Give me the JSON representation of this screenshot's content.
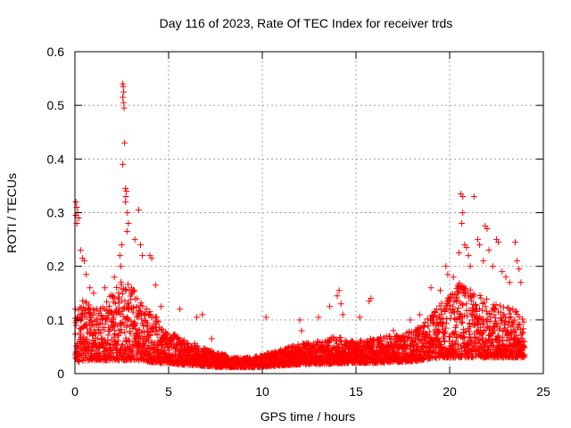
{
  "chart_data": {
    "type": "scatter",
    "title": "Day 116 of 2023, Rate Of TEC Index for receiver trds",
    "xlabel": "GPS time / hours",
    "ylabel": "ROTI / TECUs",
    "xlim": [
      0,
      25
    ],
    "ylim": [
      0,
      0.6
    ],
    "xticks": [
      0,
      5,
      10,
      15,
      20,
      25
    ],
    "yticks": [
      0,
      0.1,
      0.2,
      0.3,
      0.4,
      0.5,
      0.6
    ],
    "xtick_labels": [
      "0",
      "5",
      "10",
      "15",
      "20",
      "25"
    ],
    "ytick_labels": [
      "0",
      "0.1",
      "0.2",
      "0.3",
      "0.4",
      "0.5",
      "0.6"
    ],
    "grid": true,
    "marker": "plus",
    "point_color": "#ff0000",
    "hour_range": [
      0,
      24
    ],
    "envelope": {
      "hours": [
        0,
        0.5,
        1,
        1.5,
        2,
        2.5,
        3,
        3.5,
        4,
        4.5,
        5,
        5.5,
        6,
        6.5,
        7,
        7.5,
        8,
        8.5,
        9,
        9.5,
        10,
        10.5,
        11,
        11.5,
        12,
        12.5,
        13,
        13.5,
        14,
        14.5,
        15,
        15.5,
        16,
        16.5,
        17,
        17.5,
        18,
        18.5,
        19,
        19.5,
        20,
        20.5,
        21,
        21.5,
        22,
        22.5,
        23,
        23.5,
        24
      ],
      "typical_max": [
        0.12,
        0.14,
        0.12,
        0.13,
        0.15,
        0.19,
        0.17,
        0.14,
        0.12,
        0.1,
        0.08,
        0.07,
        0.06,
        0.055,
        0.045,
        0.04,
        0.035,
        0.03,
        0.03,
        0.03,
        0.035,
        0.04,
        0.045,
        0.05,
        0.055,
        0.06,
        0.06,
        0.065,
        0.07,
        0.065,
        0.06,
        0.065,
        0.065,
        0.07,
        0.07,
        0.075,
        0.08,
        0.09,
        0.11,
        0.13,
        0.15,
        0.17,
        0.16,
        0.15,
        0.14,
        0.13,
        0.13,
        0.12,
        0.1
      ],
      "baseline": [
        0.02,
        0.025,
        0.025,
        0.025,
        0.025,
        0.025,
        0.025,
        0.025,
        0.022,
        0.02,
        0.02,
        0.018,
        0.016,
        0.015,
        0.014,
        0.013,
        0.012,
        0.012,
        0.012,
        0.012,
        0.013,
        0.014,
        0.015,
        0.016,
        0.017,
        0.018,
        0.018,
        0.018,
        0.019,
        0.02,
        0.02,
        0.02,
        0.02,
        0.021,
        0.022,
        0.022,
        0.023,
        0.025,
        0.028,
        0.03,
        0.03,
        0.03,
        0.03,
        0.03,
        0.03,
        0.03,
        0.03,
        0.03,
        0.03
      ]
    },
    "outliers": [
      {
        "x": 0.05,
        "y": 0.32
      },
      {
        "x": 0.1,
        "y": 0.31
      },
      {
        "x": 0.15,
        "y": 0.3
      },
      {
        "x": 0.2,
        "y": 0.29
      },
      {
        "x": 0.1,
        "y": 0.28
      },
      {
        "x": 0.05,
        "y": 0.295
      },
      {
        "x": 0.3,
        "y": 0.23
      },
      {
        "x": 0.4,
        "y": 0.215
      },
      {
        "x": 0.5,
        "y": 0.21
      },
      {
        "x": 0.6,
        "y": 0.185
      },
      {
        "x": 0.8,
        "y": 0.16
      },
      {
        "x": 1.0,
        "y": 0.15
      },
      {
        "x": 1.6,
        "y": 0.16
      },
      {
        "x": 2.1,
        "y": 0.18
      },
      {
        "x": 2.4,
        "y": 0.22
      },
      {
        "x": 2.55,
        "y": 0.54
      },
      {
        "x": 2.58,
        "y": 0.535
      },
      {
        "x": 2.6,
        "y": 0.525
      },
      {
        "x": 2.55,
        "y": 0.515
      },
      {
        "x": 2.6,
        "y": 0.505
      },
      {
        "x": 2.62,
        "y": 0.495
      },
      {
        "x": 2.65,
        "y": 0.43
      },
      {
        "x": 2.55,
        "y": 0.39
      },
      {
        "x": 2.7,
        "y": 0.345
      },
      {
        "x": 2.75,
        "y": 0.34
      },
      {
        "x": 2.72,
        "y": 0.33
      },
      {
        "x": 2.7,
        "y": 0.32
      },
      {
        "x": 2.8,
        "y": 0.3
      },
      {
        "x": 2.85,
        "y": 0.28
      },
      {
        "x": 2.78,
        "y": 0.265
      },
      {
        "x": 3.4,
        "y": 0.305
      },
      {
        "x": 3.2,
        "y": 0.25
      },
      {
        "x": 3.5,
        "y": 0.24
      },
      {
        "x": 3.6,
        "y": 0.22
      },
      {
        "x": 4.0,
        "y": 0.22
      },
      {
        "x": 4.1,
        "y": 0.215
      },
      {
        "x": 2.5,
        "y": 0.24
      },
      {
        "x": 2.45,
        "y": 0.2
      },
      {
        "x": 4.3,
        "y": 0.165
      },
      {
        "x": 4.6,
        "y": 0.125
      },
      {
        "x": 5.6,
        "y": 0.12
      },
      {
        "x": 6.5,
        "y": 0.105
      },
      {
        "x": 6.8,
        "y": 0.11
      },
      {
        "x": 7.3,
        "y": 0.065
      },
      {
        "x": 10.2,
        "y": 0.105
      },
      {
        "x": 12.0,
        "y": 0.1
      },
      {
        "x": 12.1,
        "y": 0.08
      },
      {
        "x": 13.0,
        "y": 0.105
      },
      {
        "x": 13.6,
        "y": 0.125
      },
      {
        "x": 14.1,
        "y": 0.155
      },
      {
        "x": 14.0,
        "y": 0.145
      },
      {
        "x": 14.2,
        "y": 0.13
      },
      {
        "x": 14.3,
        "y": 0.11
      },
      {
        "x": 15.2,
        "y": 0.105
      },
      {
        "x": 15.7,
        "y": 0.135
      },
      {
        "x": 15.8,
        "y": 0.14
      },
      {
        "x": 17.0,
        "y": 0.08
      },
      {
        "x": 17.9,
        "y": 0.1
      },
      {
        "x": 18.4,
        "y": 0.11
      },
      {
        "x": 19.0,
        "y": 0.16
      },
      {
        "x": 19.3,
        "y": 0.12
      },
      {
        "x": 19.5,
        "y": 0.155
      },
      {
        "x": 19.8,
        "y": 0.2
      },
      {
        "x": 19.9,
        "y": 0.185
      },
      {
        "x": 20.2,
        "y": 0.18
      },
      {
        "x": 20.5,
        "y": 0.225
      },
      {
        "x": 20.6,
        "y": 0.335
      },
      {
        "x": 20.7,
        "y": 0.33
      },
      {
        "x": 20.7,
        "y": 0.3
      },
      {
        "x": 20.65,
        "y": 0.28
      },
      {
        "x": 20.8,
        "y": 0.24
      },
      {
        "x": 20.9,
        "y": 0.235
      },
      {
        "x": 21.0,
        "y": 0.22
      },
      {
        "x": 21.1,
        "y": 0.2
      },
      {
        "x": 21.3,
        "y": 0.33
      },
      {
        "x": 21.5,
        "y": 0.25
      },
      {
        "x": 21.6,
        "y": 0.24
      },
      {
        "x": 21.8,
        "y": 0.21
      },
      {
        "x": 21.9,
        "y": 0.275
      },
      {
        "x": 22.0,
        "y": 0.27
      },
      {
        "x": 22.1,
        "y": 0.23
      },
      {
        "x": 22.3,
        "y": 0.2
      },
      {
        "x": 22.5,
        "y": 0.25
      },
      {
        "x": 22.6,
        "y": 0.245
      },
      {
        "x": 22.8,
        "y": 0.19
      },
      {
        "x": 23.0,
        "y": 0.18
      },
      {
        "x": 23.2,
        "y": 0.17
      },
      {
        "x": 23.5,
        "y": 0.245
      },
      {
        "x": 23.6,
        "y": 0.21
      },
      {
        "x": 23.7,
        "y": 0.195
      },
      {
        "x": 23.8,
        "y": 0.17
      }
    ]
  }
}
